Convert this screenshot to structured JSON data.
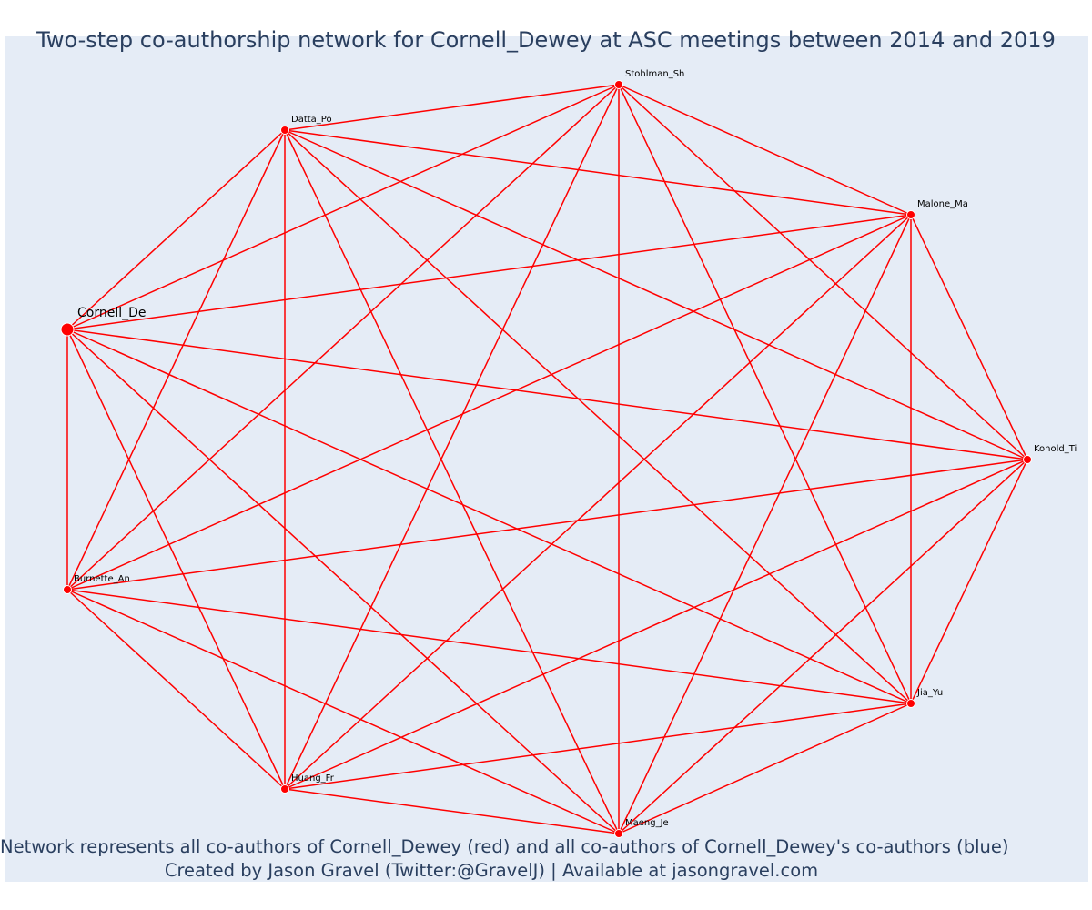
{
  "title": "Two-step co-authorship network for Cornell_Dewey at ASC meetings between 2014 and 2019",
  "caption_line1": "Network represents all co-authors of Cornell_Dewey (red) and all co-authors of Cornell_Dewey's co-authors (blue)",
  "caption_line2": "Created by Jason Gravel (Twitter:@GravelJ) | Available at jasongravel.com",
  "colors": {
    "edge": "#ff0000",
    "node": "#ff0000",
    "background": "#e5ecf6",
    "text": "#2a3f5f"
  },
  "network": {
    "focal_node": "Cornell_De",
    "nodes": [
      {
        "id": "cornell",
        "label": "Cornell_De",
        "focal": true
      },
      {
        "id": "datta",
        "label": "Datta_Po"
      },
      {
        "id": "stohlman",
        "label": "Stohlman_Sh"
      },
      {
        "id": "malone",
        "label": "Malone_Ma"
      },
      {
        "id": "konold",
        "label": "Konold_Ti"
      },
      {
        "id": "jia",
        "label": "Jia_Yu"
      },
      {
        "id": "maeng",
        "label": "Maeng_Je"
      },
      {
        "id": "huang",
        "label": "Huang_Fr"
      },
      {
        "id": "burnette",
        "label": "Burnette_An"
      }
    ],
    "edges": "complete"
  }
}
